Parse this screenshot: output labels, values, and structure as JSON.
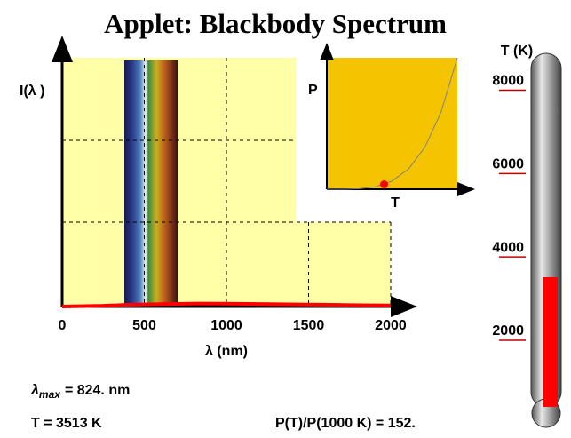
{
  "title": "Applet: Blackbody Spectrum",
  "chart_data": [
    {
      "type": "line",
      "x_label": "λ (nm)",
      "y_label": "I(λ )",
      "x": [
        0,
        250,
        400,
        600,
        824,
        1000,
        1250,
        1500,
        1750,
        2000
      ],
      "series": [
        {
          "color": "#ff0000",
          "values": [
            0,
            0.3,
            0.7,
            1.0,
            1.2,
            1.15,
            1.0,
            0.8,
            0.6,
            0.45
          ]
        }
      ],
      "xlim": [
        0,
        2000
      ],
      "xticks": [
        0,
        500,
        1000,
        1500,
        2000
      ],
      "ylim": [
        0,
        100
      ],
      "grid": true
    },
    {
      "type": "line",
      "x_label": "T",
      "y_label": "P",
      "x": [
        0,
        1000,
        2000,
        3000,
        4000,
        5000,
        6000,
        7000,
        8000
      ],
      "series": [
        {
          "color": "#808080",
          "values": [
            0,
            1,
            16,
            81,
            256,
            625,
            1296,
            2401,
            4096
          ]
        }
      ],
      "points": {
        "color": "#ff0000",
        "x": [
          3513
        ],
        "values": [
          152
        ]
      },
      "xlim": [
        0,
        8000
      ],
      "ylim": [
        0,
        4096
      ]
    },
    {
      "type": "thermometer",
      "title": "T (K)",
      "ylim": [
        400,
        8800
      ],
      "yticks": [
        2000,
        4000,
        6000,
        8000
      ],
      "value": 3513,
      "color": "#ff0000"
    }
  ],
  "readouts": {
    "lambda_max": {
      "symbol": "λ",
      "subscript": "max",
      "text": "= 824. nm"
    },
    "temperature": "T = 3513 K",
    "power_ratio": "P(T)/P(1000 K) = 152."
  }
}
